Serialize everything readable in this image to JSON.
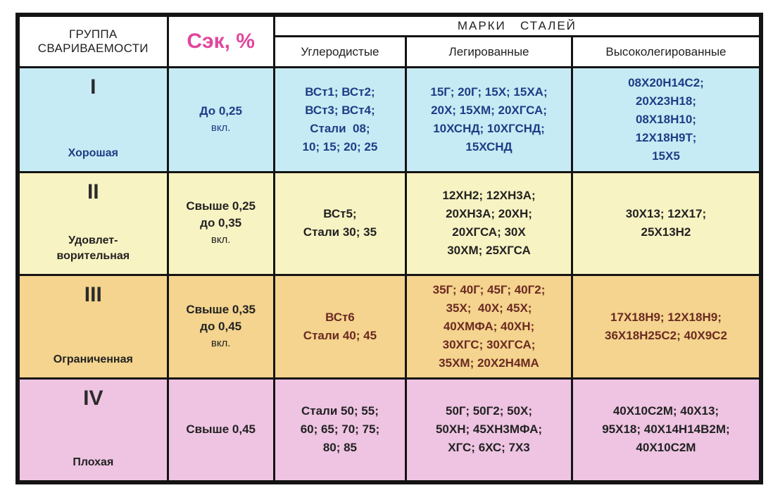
{
  "header": {
    "group": [
      "ГРУППА",
      "СВАРИВАЕМОСТИ"
    ],
    "sek": "Сэк, %",
    "marks": "МАРКИ   СТАЛЕЙ",
    "carbon": "Углеродистые",
    "alloyed": "Легированные",
    "highalloy": "Высоколегированные"
  },
  "rows": [
    {
      "roman": "I",
      "name": [
        "Хорошая"
      ],
      "sek": [
        "До 0,25",
        "вкл."
      ],
      "carbon": [
        "ВСт1; ВСт2;",
        "ВСт3; ВСт4;",
        "Стали  08;",
        "10; 15; 20; 25"
      ],
      "alloyed": [
        "15Г; 20Г; 15Х; 15ХА;",
        "20Х; 15ХМ; 20ХГСА;",
        "10ХСНД; 10ХГСНД;",
        "15ХСНД"
      ],
      "highalloy": [
        "08Х20Н14С2;",
        "20Х23Н18;",
        "08Х18Н10;",
        "12Х18Н9Т;",
        "15Х5"
      ]
    },
    {
      "roman": "II",
      "name": [
        "Удовлет-",
        "ворительная"
      ],
      "sek": [
        "Свыше 0,25",
        "до 0,35",
        "вкл."
      ],
      "carbon": [
        "ВСт5;",
        "Стали 30; 35"
      ],
      "alloyed": [
        "12ХН2; 12ХН3А;",
        "20ХН3А; 20ХН;",
        "20ХГСА; 30Х",
        "30ХМ; 25ХГСА"
      ],
      "highalloy": [
        "30Х13; 12Х17;",
        "25Х13Н2"
      ]
    },
    {
      "roman": "III",
      "name": [
        "Ограниченная"
      ],
      "sek": [
        "Свыше 0,35",
        "до 0,45",
        "вкл."
      ],
      "carbon": [
        "ВСт6",
        "Стали 40; 45"
      ],
      "alloyed": [
        "35Г; 40Г; 45Г; 40Г2;",
        "35Х;  40Х; 45Х;",
        "40ХМФА; 40ХН;",
        "30ХГС; 30ХГСА;",
        "35ХМ; 20Х2Н4МА"
      ],
      "highalloy": [
        "17Х18Н9; 12Х18Н9;",
        "36Х18Н25С2; 40Х9С2"
      ]
    },
    {
      "roman": "IV",
      "name": [
        "Плохая"
      ],
      "sek": [
        "Свыше 0,45"
      ],
      "carbon": [
        "Стали 50; 55;",
        "60; 65; 70; 75;",
        "80; 85"
      ],
      "alloyed": [
        "50Г; 50Г2; 50Х;",
        "50ХН; 45ХН3МФА;",
        "ХГС; 6ХС; 7Х3"
      ],
      "highalloy": [
        "40Х10С2М; 40Х13;",
        "95Х18; 40Х14Н14В2М;",
        "40Х10С2М"
      ]
    }
  ]
}
